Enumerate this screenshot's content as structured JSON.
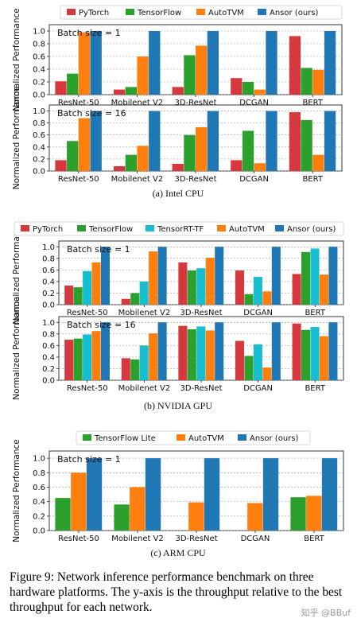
{
  "colors": {
    "PyTorch": "#d5393d",
    "TensorFlow": "#2ca02c",
    "TensorRT-TF": "#17becf",
    "AutoTVM": "#ff7f0e",
    "Ansor (ours)": "#1f77b4",
    "TensorFlow Lite": "#2ca02c"
  },
  "figure_caption": "Figure 9: Network inference performance benchmark on three hardware platforms. The y-axis is the throughput relative to the best throughput for each network.",
  "watermark": "知乎 @BBuf",
  "chart_data": [
    {
      "type": "bar",
      "platform_caption": "(a) Intel CPU",
      "panel_label": "Batch size = 1",
      "ylabel": "Normalized Performance",
      "ylim": [
        0,
        1.1
      ],
      "yticks": [
        "0.0",
        "0.2",
        "0.4",
        "0.6",
        "0.8",
        "1.0"
      ],
      "legend": "top",
      "categories": [
        "ResNet-50",
        "Mobilenet V2",
        "3D-ResNet",
        "DCGAN",
        "BERT"
      ],
      "series": [
        {
          "name": "PyTorch",
          "values": [
            0.21,
            0.08,
            0.12,
            0.26,
            0.92
          ]
        },
        {
          "name": "TensorFlow",
          "values": [
            0.33,
            0.12,
            0.62,
            0.2,
            0.42
          ]
        },
        {
          "name": "AutoTVM",
          "values": [
            0.98,
            0.6,
            0.77,
            0.08,
            0.39
          ]
        },
        {
          "name": "Ansor (ours)",
          "values": [
            1.0,
            1.0,
            1.0,
            1.0,
            1.0
          ]
        }
      ]
    },
    {
      "type": "bar",
      "panel_label": "Batch size = 16",
      "ylabel": "Normalized Performance",
      "ylim": [
        0,
        1.1
      ],
      "yticks": [
        "0.0",
        "0.2",
        "0.4",
        "0.6",
        "0.8",
        "1.0"
      ],
      "categories": [
        "ResNet-50",
        "Mobilenet V2",
        "3D-ResNet",
        "DCGAN",
        "BERT"
      ],
      "series": [
        {
          "name": "PyTorch",
          "values": [
            0.18,
            0.08,
            0.12,
            0.18,
            0.98
          ]
        },
        {
          "name": "TensorFlow",
          "values": [
            0.5,
            0.27,
            0.6,
            0.67,
            0.85
          ]
        },
        {
          "name": "AutoTVM",
          "values": [
            0.88,
            0.42,
            0.73,
            0.13,
            0.27
          ]
        },
        {
          "name": "Ansor (ours)",
          "values": [
            1.0,
            1.0,
            1.0,
            1.0,
            1.0
          ]
        }
      ]
    },
    {
      "type": "bar",
      "platform_caption": "(b) NVIDIA GPU",
      "panel_label": "Batch size = 1",
      "ylabel": "Normalized Performance",
      "ylim": [
        0,
        1.1
      ],
      "yticks": [
        "0.0",
        "0.2",
        "0.4",
        "0.6",
        "0.8",
        "1.0"
      ],
      "legend": "top",
      "categories": [
        "ResNet-50",
        "Mobilenet V2",
        "3D-ResNet",
        "DCGAN",
        "BERT"
      ],
      "series": [
        {
          "name": "PyTorch",
          "values": [
            0.33,
            0.1,
            0.73,
            0.59,
            0.53
          ]
        },
        {
          "name": "TensorFlow",
          "values": [
            0.3,
            0.2,
            0.59,
            0.18,
            0.91
          ]
        },
        {
          "name": "TensorRT-TF",
          "values": [
            0.58,
            0.4,
            0.63,
            0.48,
            0.97
          ]
        },
        {
          "name": "AutoTVM",
          "values": [
            0.73,
            0.92,
            0.81,
            0.23,
            0.52
          ]
        },
        {
          "name": "Ansor (ours)",
          "values": [
            1.0,
            1.0,
            1.0,
            1.0,
            1.0
          ]
        }
      ]
    },
    {
      "type": "bar",
      "panel_label": "Batch size = 16",
      "ylabel": "Normalized Performance",
      "ylim": [
        0,
        1.1
      ],
      "yticks": [
        "0.0",
        "0.2",
        "0.4",
        "0.6",
        "0.8",
        "1.0"
      ],
      "categories": [
        "ResNet-50",
        "Mobilenet V2",
        "3D-ResNet",
        "DCGAN",
        "BERT"
      ],
      "series": [
        {
          "name": "PyTorch",
          "values": [
            0.7,
            0.38,
            0.94,
            0.68,
            0.98
          ]
        },
        {
          "name": "TensorFlow",
          "values": [
            0.72,
            0.36,
            0.88,
            0.42,
            0.87
          ]
        },
        {
          "name": "TensorRT-TF",
          "values": [
            0.79,
            0.6,
            0.93,
            0.62,
            0.92
          ]
        },
        {
          "name": "AutoTVM",
          "values": [
            0.85,
            0.81,
            0.86,
            0.22,
            0.76
          ]
        },
        {
          "name": "Ansor (ours)",
          "values": [
            1.0,
            1.0,
            1.0,
            1.0,
            1.0
          ]
        }
      ]
    },
    {
      "type": "bar",
      "platform_caption": "(c) ARM CPU",
      "panel_label": "Batch size = 1",
      "ylabel": "Normalized Performance",
      "ylim": [
        0,
        1.1
      ],
      "yticks": [
        "0.0",
        "0.2",
        "0.4",
        "0.6",
        "0.8",
        "1.0"
      ],
      "legend": "top",
      "categories": [
        "ResNet-50",
        "Mobilenet V2",
        "3D-ResNet",
        "DCGAN",
        "BERT"
      ],
      "series": [
        {
          "name": "TensorFlow Lite",
          "values": [
            0.45,
            0.36,
            0.0,
            0.0,
            0.46
          ]
        },
        {
          "name": "AutoTVM",
          "values": [
            0.8,
            0.6,
            0.39,
            0.38,
            0.48
          ]
        },
        {
          "name": "Ansor (ours)",
          "values": [
            1.0,
            1.0,
            1.0,
            1.0,
            1.0
          ]
        }
      ]
    }
  ]
}
